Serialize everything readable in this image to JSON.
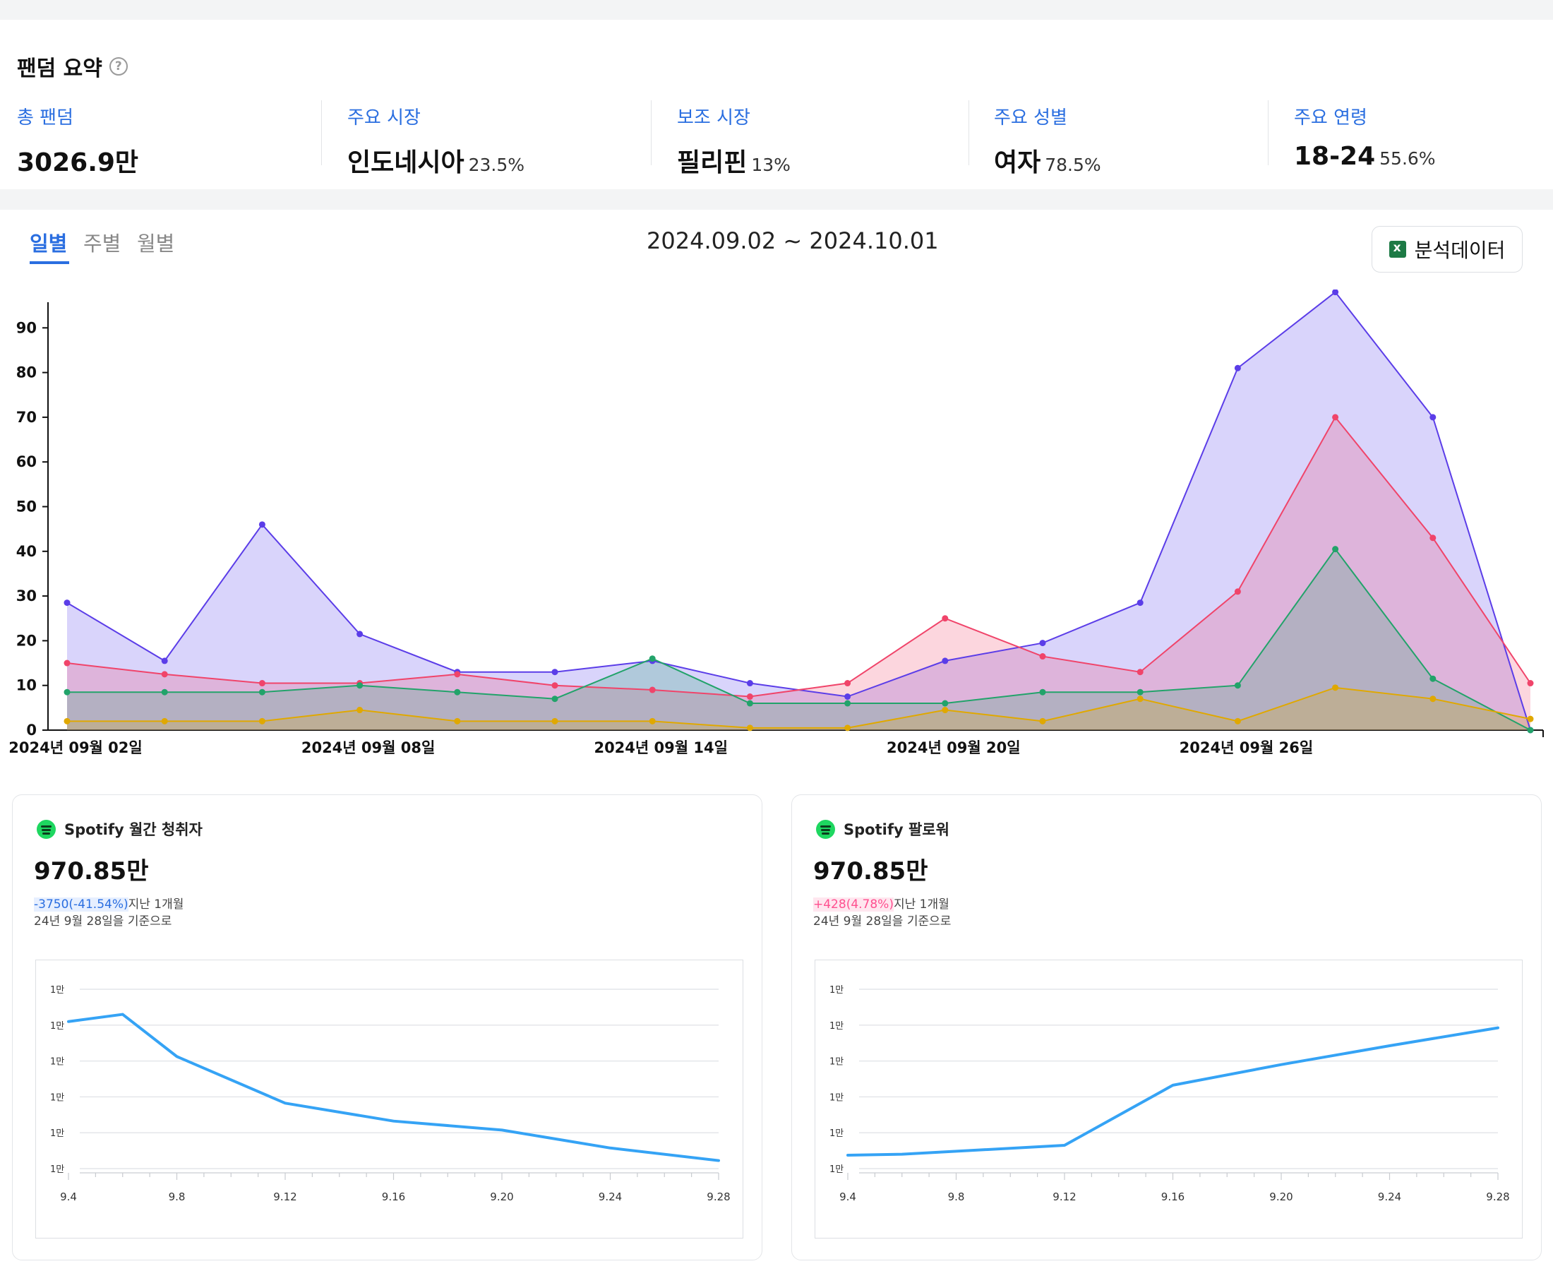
{
  "summary": {
    "title": "팬덤 요약",
    "help_icon": "question-circle-icon",
    "stats": [
      {
        "label": "총 팬덤",
        "value": "3026.9만",
        "sub": ""
      },
      {
        "label": "주요 시장",
        "value": "인도네시아",
        "sub": "23.5%"
      },
      {
        "label": "보조 시장",
        "value": "필리핀",
        "sub": "13%"
      },
      {
        "label": "주요 성별",
        "value": "여자",
        "sub": "78.5%"
      },
      {
        "label": "주요 연령",
        "value": "18-24",
        "sub": "55.6%"
      }
    ]
  },
  "tabs": [
    {
      "label": "일별",
      "active": true
    },
    {
      "label": "주별",
      "active": false
    },
    {
      "label": "월별",
      "active": false
    }
  ],
  "date_range": "2024.09.02 ~ 2024.10.01",
  "analysis_button": {
    "label": "분석데이터",
    "icon": "excel-icon"
  },
  "colors": {
    "accent": "#2a6ee0",
    "purple": "#5b3de8",
    "red": "#f0446a",
    "green": "#22a36a",
    "gold": "#e0a800",
    "spotify": "#1ed760",
    "line_blue": "#35a3f5"
  },
  "chart_data": [
    {
      "type": "area",
      "title": "",
      "xlabel": "",
      "ylabel": "",
      "ylim": [
        0,
        95
      ],
      "yticks": [
        0,
        10,
        20,
        30,
        40,
        50,
        60,
        70,
        80,
        90
      ],
      "x_tick_labels": [
        {
          "index": 0,
          "label": "2024년 09월 02일"
        },
        {
          "index": 3,
          "label": "2024년 09월 08일"
        },
        {
          "index": 6,
          "label": "2024년 09월 14일"
        },
        {
          "index": 9,
          "label": "2024년 09월 20일"
        },
        {
          "index": 12,
          "label": "2024년 09월 26일"
        }
      ],
      "series": [
        {
          "key": "purple",
          "color": "#5b3de8",
          "values": [
            28.5,
            15.5,
            46,
            21.5,
            13,
            13,
            15.5,
            10.5,
            7.5,
            15.5,
            19.5,
            28.5,
            81,
            98,
            70,
            0
          ]
        },
        {
          "key": "red",
          "color": "#f0446a",
          "values": [
            15,
            12.5,
            10.5,
            10.5,
            12.5,
            10,
            9,
            7.5,
            10.5,
            25,
            16.5,
            13,
            31,
            70,
            43,
            10.5
          ]
        },
        {
          "key": "green",
          "color": "#22a36a",
          "values": [
            8.5,
            8.5,
            8.5,
            10,
            8.5,
            7,
            16,
            6,
            6,
            6,
            8.5,
            8.5,
            10,
            40.5,
            11.5,
            0
          ]
        },
        {
          "key": "gold",
          "color": "#e0a800",
          "values": [
            2,
            2,
            2,
            4.5,
            2,
            2,
            2,
            0.5,
            0.5,
            4.5,
            2,
            7,
            2,
            9.5,
            7,
            2.5
          ]
        }
      ]
    },
    {
      "type": "line",
      "title": "Spotify 월간 청취자",
      "x_labels": [
        "9.4",
        "9.8",
        "9.12",
        "9.16",
        "9.20",
        "9.24",
        "9.28"
      ],
      "y_labels": [
        "1만",
        "1만",
        "1만",
        "1만",
        "1만",
        "1만"
      ],
      "x": [
        4,
        6,
        8,
        12,
        16,
        20,
        24,
        28
      ],
      "values": [
        0.82,
        0.86,
        0.625,
        0.365,
        0.265,
        0.215,
        0.115,
        0.045
      ]
    },
    {
      "type": "line",
      "title": "Spotify 팔로워",
      "x_labels": [
        "9.4",
        "9.8",
        "9.12",
        "9.16",
        "9.20",
        "9.24",
        "9.28"
      ],
      "y_labels": [
        "1만",
        "1만",
        "1만",
        "1만",
        "1만",
        "1만"
      ],
      "x": [
        4,
        6,
        12,
        16,
        20,
        24,
        28
      ],
      "values": [
        0.075,
        0.08,
        0.13,
        0.465,
        0.58,
        0.685,
        0.785
      ]
    }
  ],
  "cards": [
    {
      "title": "Spotify 월간 청취자",
      "icon": "spotify-icon",
      "value": "970.85만",
      "change": "-3750(-41.54%)",
      "change_suffix": "지난 1개월",
      "basis": "24년 9월 28일을 기준으로"
    },
    {
      "title": "Spotify 팔로워",
      "icon": "spotify-icon",
      "value": "970.85만",
      "change": "+428(4.78%)",
      "change_suffix": "지난 1개월",
      "basis": "24년 9월 28일을 기준으로"
    }
  ]
}
